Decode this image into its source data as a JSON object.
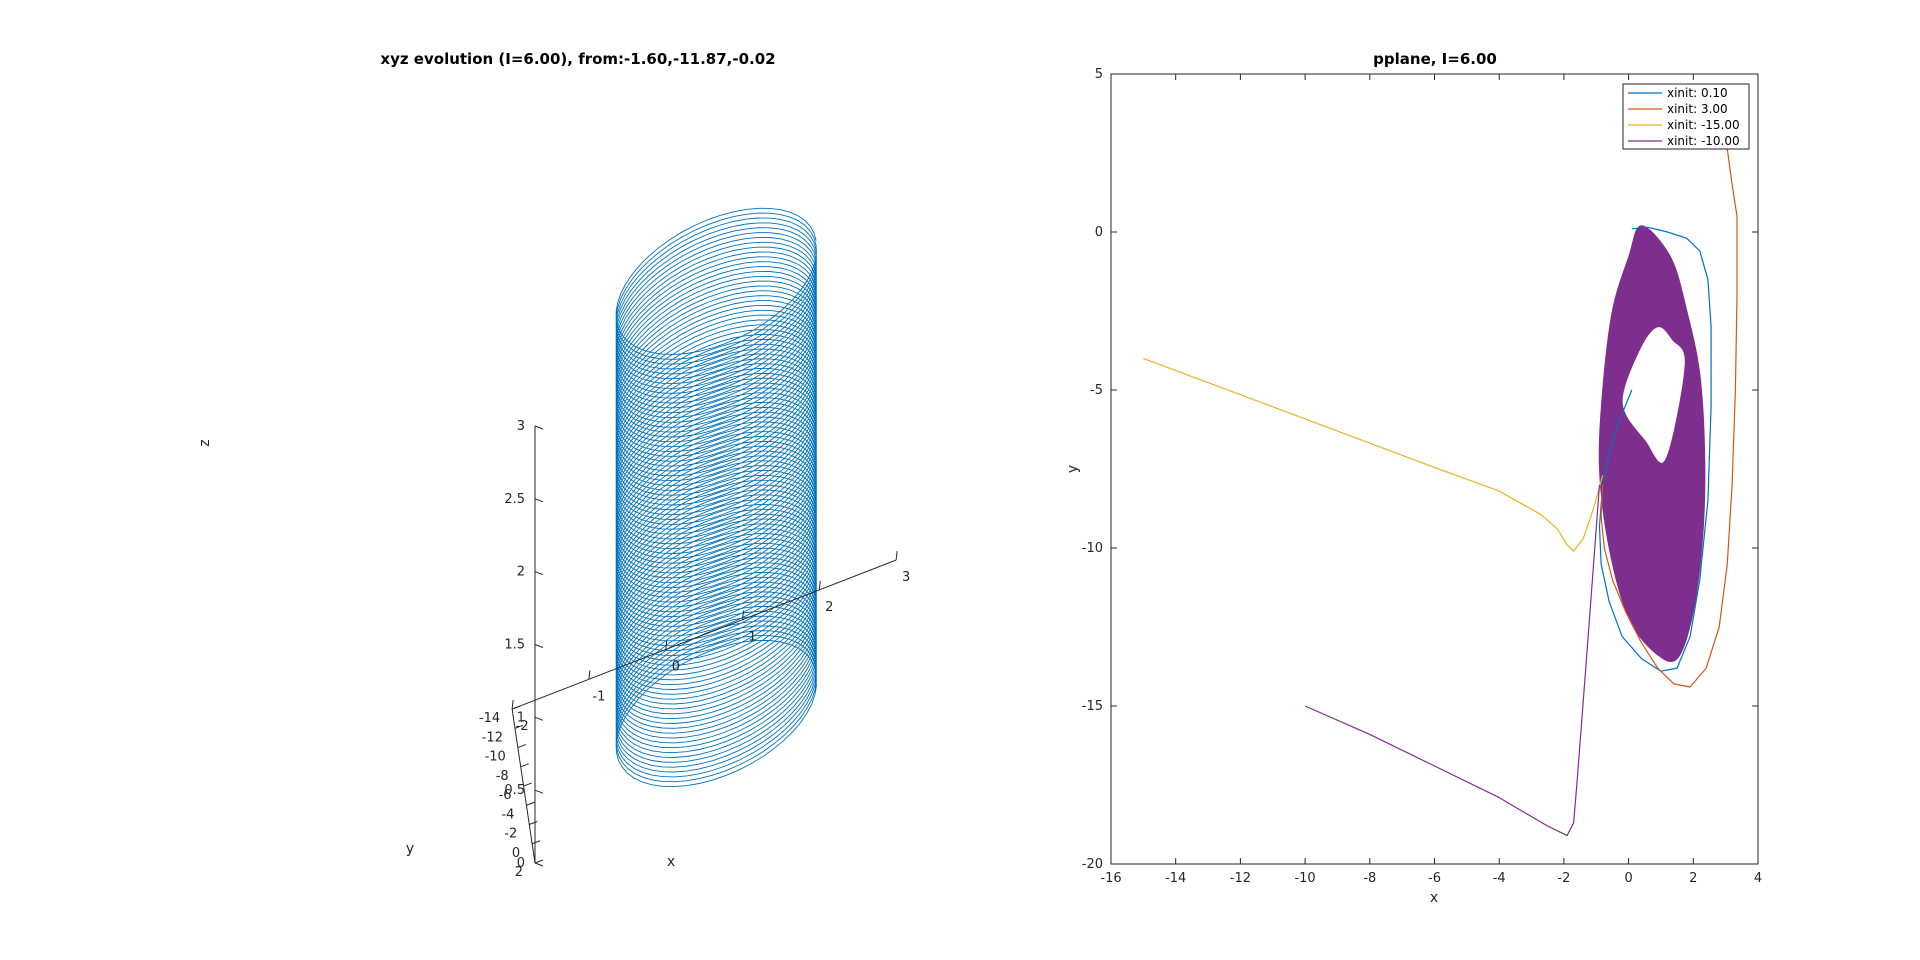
{
  "chart_data": [
    {
      "type": "line3d",
      "title": "xyz evolution (I=6.00), from:-1.60,-11.87,-0.02",
      "xlabel": "x",
      "ylabel": "y",
      "zlabel": "z",
      "xlim": [
        -2,
        3
      ],
      "ylim": [
        -14,
        2
      ],
      "zlim": [
        0,
        3
      ],
      "x_ticks": [
        "-2",
        "-1",
        "0",
        "1",
        "2",
        "3"
      ],
      "y_ticks": [
        "-14",
        "-12",
        "-10",
        "-8",
        "-6",
        "-4",
        "-2",
        "0",
        "2"
      ],
      "z_ticks": [
        "0",
        "0.5",
        "1",
        "1.5",
        "2",
        "2.5",
        "3"
      ],
      "series": [
        {
          "color": "#0072bd",
          "trajectory": {
            "x_center": 0.5,
            "x_radius": 1.3,
            "y_center": -5.5,
            "y_radius": 6.3,
            "z_start": 0.0,
            "z_end": 3.0,
            "turns": 90
          }
        }
      ],
      "grid": false
    },
    {
      "type": "line",
      "title": "pplane, I=6.00",
      "xlabel": "x",
      "ylabel": "y",
      "xlim": [
        -16,
        4
      ],
      "ylim": [
        -20,
        5
      ],
      "x_ticks": [
        "-16",
        "-14",
        "-12",
        "-10",
        "-8",
        "-6",
        "-4",
        "-2",
        "0",
        "2",
        "4"
      ],
      "y_ticks": [
        "-20",
        "-15",
        "-10",
        "-5",
        "0",
        "5"
      ],
      "legend_position": "top-right",
      "grid": false,
      "series": [
        {
          "name": "xinit: 0.10",
          "color": "#0072bd",
          "x": [
            0.1,
            -0.3,
            -0.6,
            -0.8,
            -0.9,
            -0.85,
            -0.6,
            -0.2,
            0.4,
            1.0,
            1.5,
            1.9,
            2.2,
            2.45,
            2.55,
            2.55,
            2.45,
            2.2,
            1.8,
            1.2,
            0.6,
            0.1
          ],
          "y": [
            -5.0,
            -6.0,
            -7.0,
            -8.0,
            -9.3,
            -10.5,
            -11.7,
            -12.8,
            -13.5,
            -13.9,
            -13.8,
            -12.8,
            -11.0,
            -8.5,
            -5.5,
            -3.0,
            -1.5,
            -0.6,
            -0.2,
            0.0,
            0.15,
            0.1
          ]
        },
        {
          "name": "xinit: 3.00",
          "color": "#d95319",
          "x": [
            3.0,
            3.2,
            3.35,
            3.35,
            3.3,
            3.2,
            3.05,
            2.8,
            2.4,
            1.9,
            1.4,
            0.9,
            0.4,
            -0.1,
            -0.5,
            -0.75,
            -0.85,
            -0.8
          ],
          "y": [
            3.0,
            1.5,
            0.5,
            -2.0,
            -5.0,
            -8.0,
            -10.5,
            -12.5,
            -13.8,
            -14.4,
            -14.3,
            -13.8,
            -13.0,
            -12.0,
            -11.0,
            -10.0,
            -9.0,
            -8.0
          ]
        },
        {
          "name": "xinit: -15.00",
          "color": "#edb120",
          "x": [
            -15.0,
            -12.0,
            -9.0,
            -6.0,
            -4.0,
            -2.7,
            -2.2,
            -1.9,
            -1.7,
            -1.4,
            -1.1,
            -0.8
          ],
          "y": [
            -4.0,
            -5.15,
            -6.3,
            -7.45,
            -8.2,
            -8.95,
            -9.4,
            -9.9,
            -10.1,
            -9.7,
            -8.8,
            -7.7
          ]
        },
        {
          "name": "xinit: -10.00",
          "color": "#7e2f8e",
          "x": [
            -10.0,
            -8.0,
            -6.0,
            -4.0,
            -2.5,
            -1.9,
            -1.7,
            -1.6,
            -1.3,
            -0.9
          ],
          "y": [
            -15.0,
            -15.9,
            -16.9,
            -17.9,
            -18.8,
            -19.1,
            -18.7,
            -17.5,
            -13.5,
            -8.0
          ]
        }
      ],
      "filled_attractor": {
        "color": "#7e2f8e",
        "hole_color": "#ffffff"
      }
    }
  ]
}
